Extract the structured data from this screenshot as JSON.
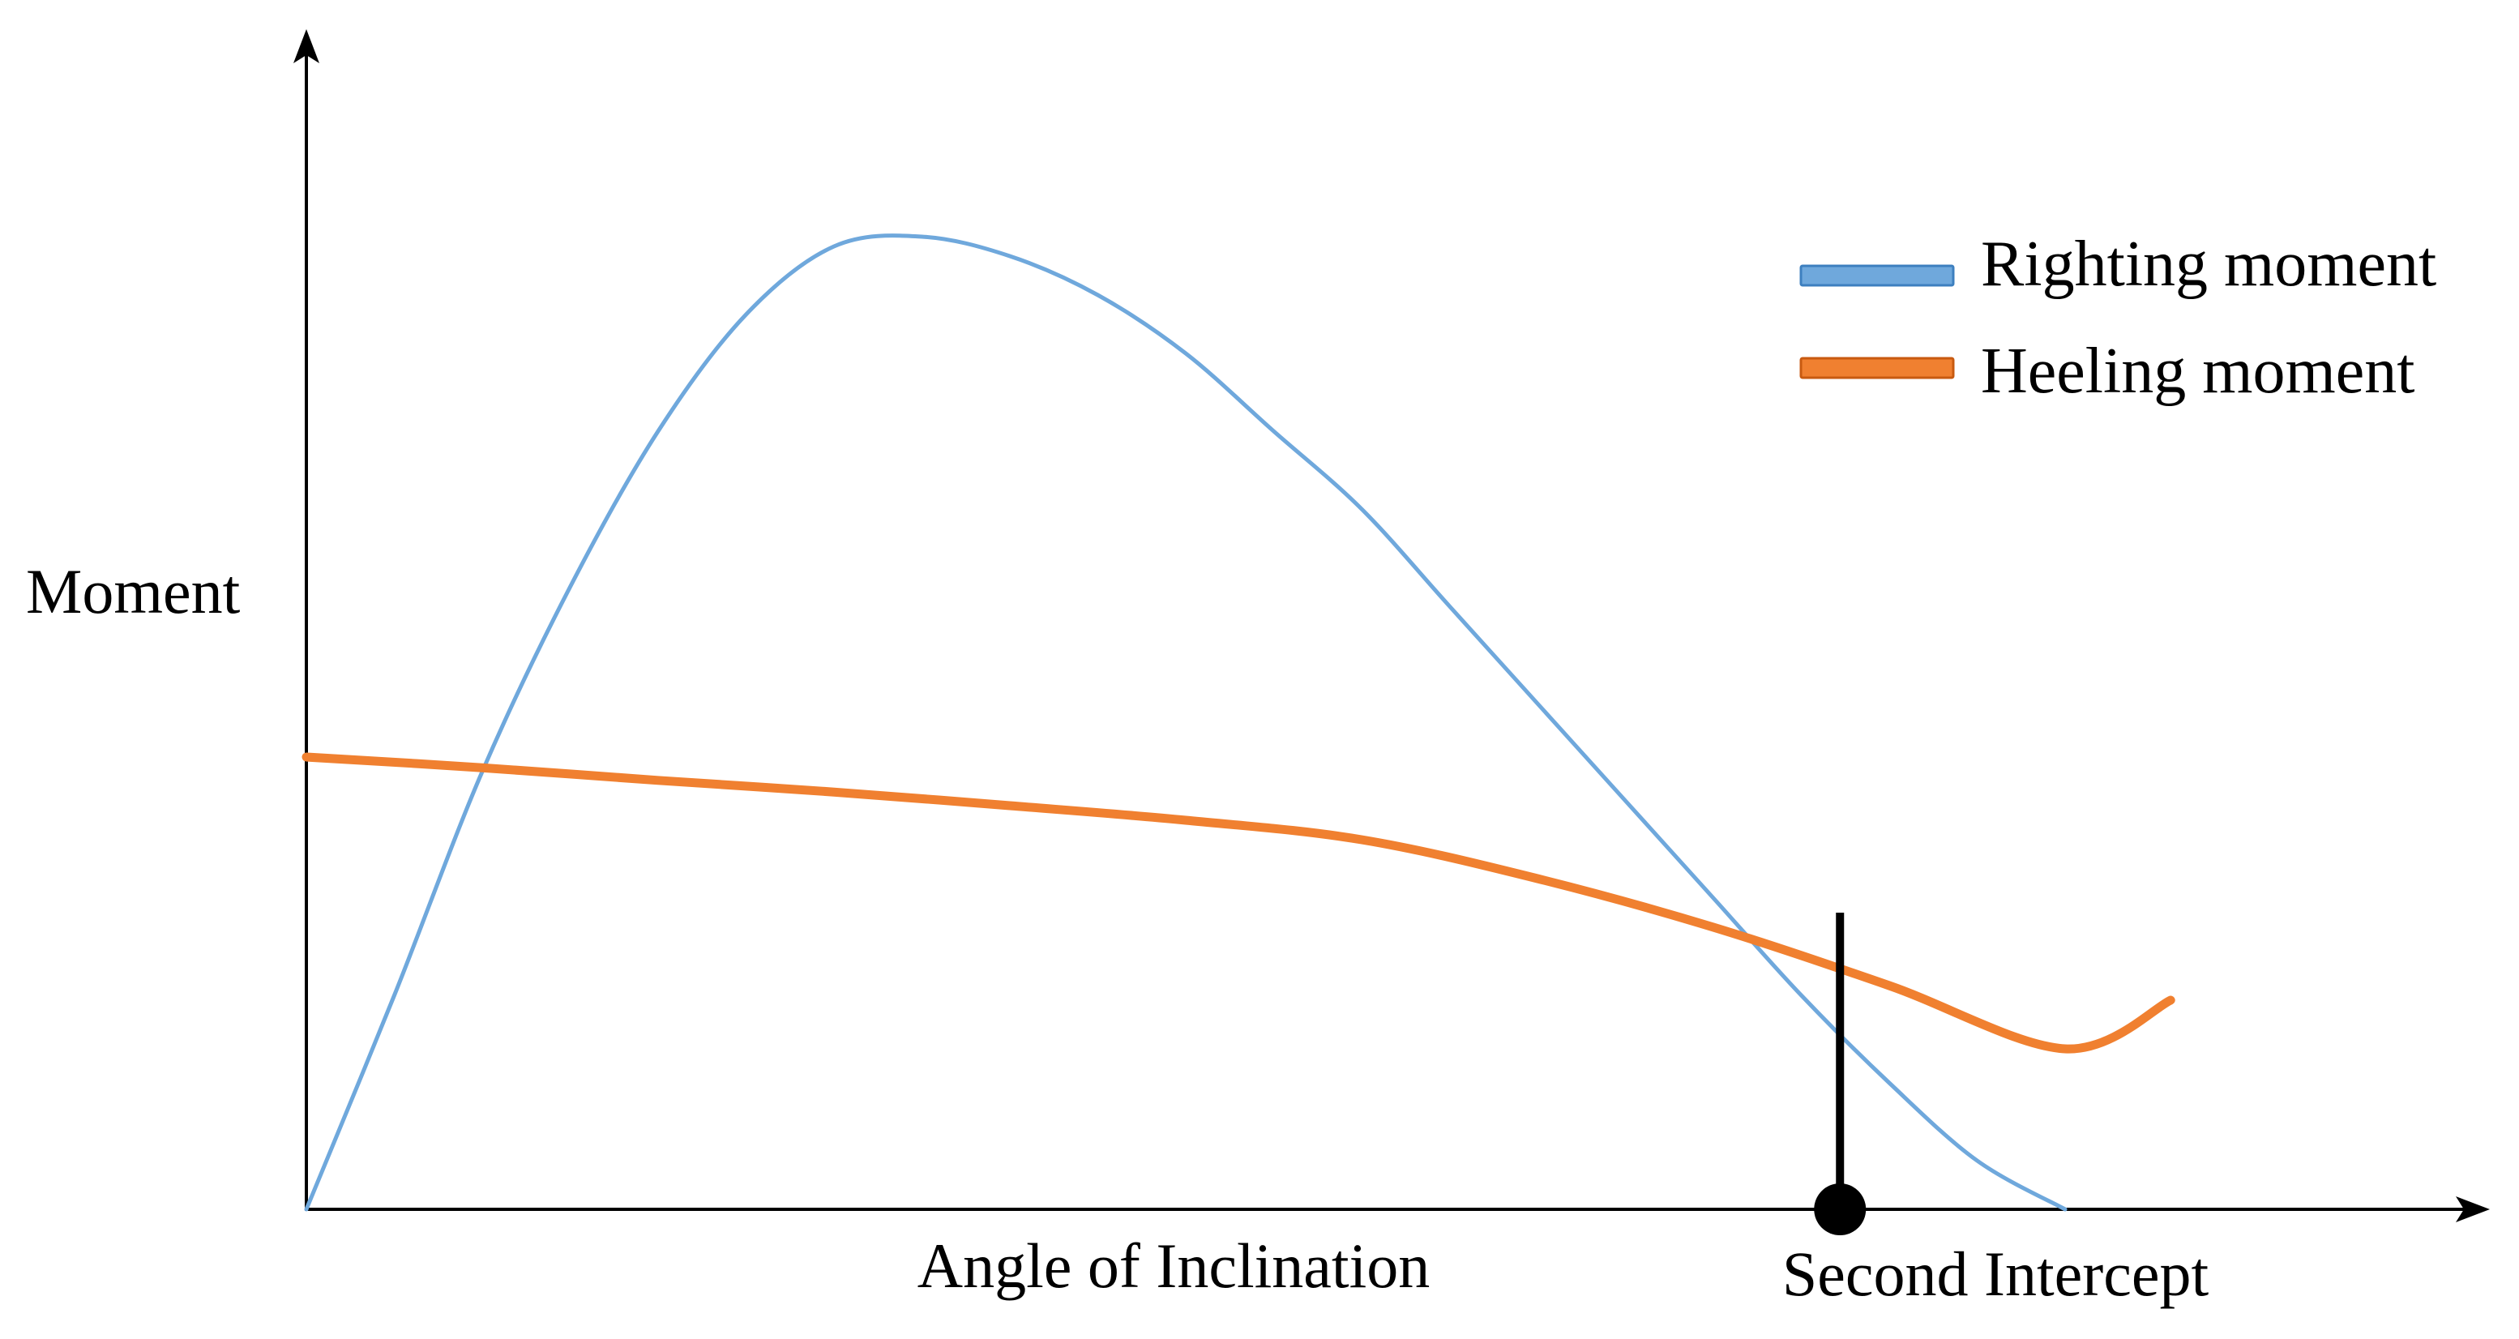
{
  "chart_data": {
    "type": "line",
    "title": "",
    "xlabel": "Angle of Inclination",
    "ylabel": "Moment",
    "xlim": [
      0,
      100
    ],
    "ylim": [
      0,
      100
    ],
    "grid": false,
    "legend_position": "top-right",
    "series": [
      {
        "name": "Righting moment",
        "color": "#6FA8DC",
        "x": [
          0,
          5,
          10,
          15,
          20,
          25,
          30,
          35,
          40,
          45,
          50,
          55,
          60,
          65,
          70,
          75,
          80,
          85,
          90,
          95,
          100
        ],
        "y": [
          0,
          22,
          45,
          64,
          80,
          92,
          99,
          100,
          98,
          94,
          88,
          80,
          72,
          62,
          52,
          42,
          32,
          22,
          13,
          5,
          0
        ]
      },
      {
        "name": "Heeling moment",
        "color": "#F08030",
        "x": [
          0,
          10,
          20,
          30,
          40,
          50,
          60,
          70,
          80,
          90,
          100,
          106
        ],
        "y": [
          46.5,
          45.4,
          44.1,
          42.9,
          41.5,
          40.0,
          38.0,
          34.0,
          29.0,
          23.0,
          16.5,
          21.5
        ]
      }
    ],
    "annotations": [
      {
        "text": "Second Intercept",
        "x": 87.2,
        "y_top": 30.5,
        "y_bottom": 0
      }
    ]
  }
}
